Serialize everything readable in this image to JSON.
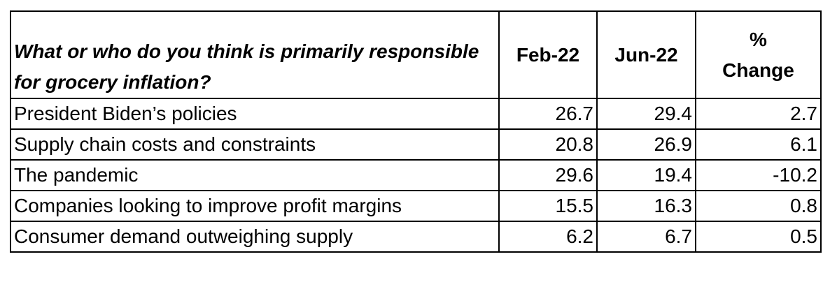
{
  "table": {
    "header": [
      "What or who do you think is primarily responsible for grocery inflation?",
      "Feb-22",
      "Jun-22",
      "% Change"
    ],
    "rows": [
      [
        "President Biden’s policies",
        26.7,
        29.4,
        2.7
      ],
      [
        "Supply chain costs and constraints",
        20.8,
        26.9,
        6.1
      ],
      [
        "The pandemic",
        29.6,
        19.4,
        -10.2
      ],
      [
        "Companies looking to improve profit margins",
        15.5,
        16.3,
        0.8
      ],
      [
        "Consumer demand outweighing supply",
        6.2,
        6.7,
        0.5
      ]
    ]
  }
}
